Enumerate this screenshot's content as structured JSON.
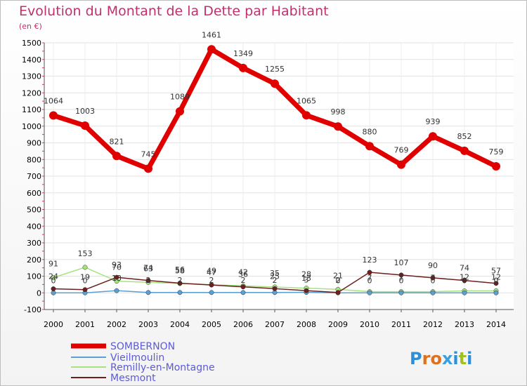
{
  "title": "Evolution du Montant de la Dette par Habitant",
  "unit": "(en €)",
  "logo": "Proxiti",
  "colors": {
    "sombernon": "#e00000",
    "vieilmoulin": "#5aa0d2",
    "remilly": "#a6e37f",
    "mesmont": "#6b1f1f",
    "title": "#c0306e",
    "legend": "#5b5bd6"
  },
  "chart_data": {
    "type": "line",
    "title": "Evolution du Montant de la Dette par Habitant",
    "ylabel": "(en €)",
    "xlabel": "",
    "x": [
      "2000",
      "2001",
      "2002",
      "2003",
      "2004",
      "2005",
      "2006",
      "2007",
      "2008",
      "2009",
      "2010",
      "2011",
      "2012",
      "2013",
      "2014"
    ],
    "ylim": [
      -100,
      1500
    ],
    "yticks": [
      -100,
      0,
      100,
      200,
      300,
      400,
      500,
      600,
      700,
      800,
      900,
      1000,
      1100,
      1200,
      1300,
      1400,
      1500
    ],
    "grid": true,
    "legend": "bottom-left",
    "series": [
      {
        "name": "SOMBERNON",
        "values": [
          1064,
          1003,
          821,
          745,
          1089,
          1461,
          1349,
          1255,
          1065,
          998,
          880,
          769,
          939,
          852,
          759
        ]
      },
      {
        "name": "Vieilmoulin",
        "values": [
          0,
          0,
          13,
          2,
          2,
          2,
          2,
          2,
          3,
          0,
          0,
          0,
          0,
          0,
          0
        ]
      },
      {
        "name": "Remilly-en-Montagne",
        "values": [
          91,
          153,
          70,
          63,
          56,
          49,
          42,
          35,
          28,
          21,
          7,
          7,
          7,
          12,
          12
        ]
      },
      {
        "name": "Mesmont",
        "values": [
          24,
          19,
          93,
          74,
          58,
          47,
          36,
          25,
          13,
          2,
          123,
          107,
          90,
          74,
          57
        ]
      }
    ],
    "labels": [
      [
        "1064",
        "1003",
        "821",
        "745",
        "1089",
        "1461",
        "1349",
        "1255",
        "1065",
        "998",
        "880",
        "769",
        "939",
        "852",
        "759"
      ],
      [
        "0",
        "0",
        "13",
        "2",
        "2",
        "2",
        "2",
        "2",
        "3",
        "0",
        "0",
        "0",
        "0",
        "0",
        "0"
      ],
      [
        "91",
        "153",
        "70",
        "63",
        "56",
        "49",
        "42",
        "35",
        "28",
        "21",
        "7",
        "7",
        "7",
        "12",
        "12"
      ],
      [
        "24",
        "19",
        "93",
        "74",
        "58",
        "47",
        "36",
        "25",
        "13",
        "2",
        "123",
        "107",
        "90",
        "74",
        "57"
      ]
    ]
  }
}
